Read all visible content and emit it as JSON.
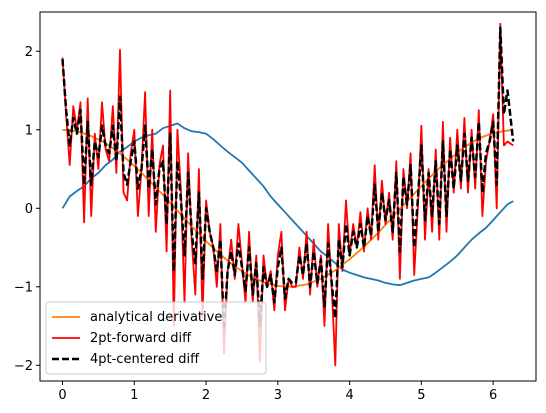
{
  "chart_data": {
    "type": "line",
    "title": "",
    "xlabel": "",
    "ylabel": "",
    "xlim": [
      -0.314,
      6.597
    ],
    "ylim": [
      -2.2,
      2.5
    ],
    "xticks": [
      0,
      1,
      2,
      3,
      4,
      5,
      6
    ],
    "yticks": [
      -2,
      -1,
      0,
      1,
      2
    ],
    "grid": false,
    "legend_position": "lower-left",
    "series": [
      {
        "name": "",
        "color": "#1f77b4",
        "style": "solid",
        "x": [
          0,
          0.1,
          0.2,
          0.3,
          0.4,
          0.5,
          0.6,
          0.7,
          0.8,
          0.9,
          1.0,
          1.1,
          1.2,
          1.3,
          1.4,
          1.5,
          1.6,
          1.7,
          1.8,
          1.9,
          2.0,
          2.1,
          2.2,
          2.3,
          2.4,
          2.5,
          2.6,
          2.7,
          2.8,
          2.9,
          3.0,
          3.1,
          3.2,
          3.3,
          3.4,
          3.5,
          3.6,
          3.7,
          3.8,
          3.9,
          4.0,
          4.1,
          4.2,
          4.3,
          4.4,
          4.5,
          4.6,
          4.7,
          4.8,
          4.9,
          5.0,
          5.1,
          5.2,
          5.3,
          5.4,
          5.5,
          5.6,
          5.7,
          5.8,
          5.9,
          6.0,
          6.1,
          6.2,
          6.28
        ],
        "values": [
          0.0,
          0.15,
          0.22,
          0.28,
          0.38,
          0.45,
          0.55,
          0.62,
          0.72,
          0.78,
          0.85,
          0.9,
          0.93,
          0.95,
          1.02,
          1.05,
          1.08,
          1.02,
          0.98,
          0.97,
          0.95,
          0.88,
          0.8,
          0.72,
          0.65,
          0.58,
          0.48,
          0.38,
          0.28,
          0.15,
          0.05,
          -0.05,
          -0.15,
          -0.25,
          -0.35,
          -0.45,
          -0.55,
          -0.62,
          -0.7,
          -0.78,
          -0.82,
          -0.85,
          -0.88,
          -0.9,
          -0.92,
          -0.95,
          -0.97,
          -0.98,
          -0.95,
          -0.92,
          -0.9,
          -0.88,
          -0.82,
          -0.75,
          -0.68,
          -0.6,
          -0.5,
          -0.4,
          -0.32,
          -0.25,
          -0.15,
          -0.05,
          0.05,
          0.09
        ]
      },
      {
        "name": "analytical derivative",
        "color": "#ff7f0e",
        "style": "solid",
        "x": [
          0,
          0.2,
          0.4,
          0.6,
          0.8,
          1.0,
          1.2,
          1.4,
          1.6,
          1.8,
          2.0,
          2.2,
          2.4,
          2.6,
          2.8,
          3.0,
          3.2,
          3.4,
          3.6,
          3.8,
          4.0,
          4.2,
          4.4,
          4.6,
          4.8,
          5.0,
          5.2,
          5.4,
          5.6,
          5.8,
          6.0,
          6.28
        ],
        "values": [
          1.0,
          0.98,
          0.92,
          0.83,
          0.7,
          0.54,
          0.36,
          0.17,
          -0.03,
          -0.23,
          -0.42,
          -0.59,
          -0.74,
          -0.86,
          -0.94,
          -0.99,
          -1.0,
          -0.97,
          -0.9,
          -0.79,
          -0.65,
          -0.49,
          -0.31,
          -0.11,
          0.09,
          0.28,
          0.47,
          0.63,
          0.78,
          0.89,
          0.96,
          1.0
        ]
      },
      {
        "name": "2pt-forward diff",
        "color": "#ff0000",
        "style": "solid",
        "x": [
          0,
          0.05,
          0.1,
          0.15,
          0.2,
          0.25,
          0.3,
          0.35,
          0.4,
          0.45,
          0.5,
          0.55,
          0.6,
          0.65,
          0.7,
          0.75,
          0.8,
          0.85,
          0.9,
          0.95,
          1.0,
          1.05,
          1.1,
          1.15,
          1.2,
          1.25,
          1.3,
          1.35,
          1.4,
          1.45,
          1.5,
          1.55,
          1.6,
          1.65,
          1.7,
          1.75,
          1.8,
          1.85,
          1.9,
          1.95,
          2.0,
          2.05,
          2.1,
          2.15,
          2.2,
          2.25,
          2.3,
          2.35,
          2.4,
          2.45,
          2.5,
          2.55,
          2.6,
          2.65,
          2.7,
          2.75,
          2.8,
          2.85,
          2.9,
          2.95,
          3.0,
          3.05,
          3.1,
          3.15,
          3.2,
          3.25,
          3.3,
          3.35,
          3.4,
          3.45,
          3.5,
          3.55,
          3.6,
          3.65,
          3.7,
          3.75,
          3.8,
          3.85,
          3.9,
          3.95,
          4.0,
          4.05,
          4.1,
          4.15,
          4.2,
          4.25,
          4.3,
          4.35,
          4.4,
          4.45,
          4.5,
          4.55,
          4.6,
          4.65,
          4.7,
          4.75,
          4.8,
          4.85,
          4.9,
          4.95,
          5.0,
          5.05,
          5.1,
          5.15,
          5.2,
          5.25,
          5.3,
          5.35,
          5.4,
          5.45,
          5.5,
          5.55,
          5.6,
          5.65,
          5.7,
          5.75,
          5.8,
          5.85,
          5.9,
          5.95,
          6.0,
          6.05,
          6.1,
          6.15,
          6.2,
          6.28
        ],
        "values": [
          1.92,
          1.2,
          0.55,
          1.3,
          1.0,
          1.35,
          -0.18,
          1.4,
          -0.1,
          0.95,
          0.5,
          1.35,
          0.75,
          0.6,
          1.3,
          0.45,
          2.02,
          0.2,
          0.1,
          0.7,
          1.0,
          -0.1,
          0.5,
          1.48,
          -0.1,
          1.0,
          -0.3,
          0.55,
          0.8,
          -0.55,
          1.5,
          -1.5,
          1.0,
          0.2,
          -1.2,
          0.7,
          -0.4,
          -1.1,
          0.5,
          -1.38,
          0.1,
          -0.3,
          -0.5,
          -1.0,
          -0.2,
          -1.85,
          -0.8,
          -0.4,
          -0.9,
          -0.2,
          -0.7,
          -1.2,
          -0.3,
          -1.2,
          -0.6,
          -1.95,
          -0.6,
          -1.0,
          -0.8,
          -1.3,
          -0.6,
          -0.3,
          -1.3,
          -0.9,
          -1.0,
          -1.0,
          -0.5,
          -0.9,
          -0.3,
          -1.1,
          -0.4,
          -1.0,
          -0.6,
          -1.5,
          -0.2,
          -1.0,
          -2.0,
          -0.2,
          -0.8,
          0.1,
          -0.6,
          -0.2,
          -0.5,
          -0.05,
          -0.55,
          0.0,
          -0.4,
          0.55,
          -0.4,
          0.35,
          -0.2,
          0.2,
          -0.4,
          0.6,
          -0.9,
          0.5,
          0.0,
          0.7,
          -0.85,
          0.0,
          1.05,
          -0.4,
          0.5,
          -0.3,
          0.75,
          -0.4,
          1.1,
          -0.3,
          0.9,
          0.2,
          1.0,
          0.25,
          1.15,
          0.2,
          1.0,
          0.25,
          1.25,
          -0.1,
          0.6,
          0.85,
          1.2,
          0.0,
          2.35,
          0.8,
          0.85,
          0.8
        ]
      },
      {
        "name": "4pt-centered diff",
        "color": "#000000",
        "style": "dashed",
        "x": [
          0,
          0.05,
          0.1,
          0.15,
          0.2,
          0.25,
          0.3,
          0.35,
          0.4,
          0.45,
          0.5,
          0.55,
          0.6,
          0.65,
          0.7,
          0.75,
          0.8,
          0.85,
          0.9,
          0.95,
          1.0,
          1.05,
          1.1,
          1.15,
          1.2,
          1.25,
          1.3,
          1.35,
          1.4,
          1.45,
          1.5,
          1.55,
          1.6,
          1.65,
          1.7,
          1.75,
          1.8,
          1.85,
          1.9,
          1.95,
          2.0,
          2.05,
          2.1,
          2.15,
          2.2,
          2.25,
          2.3,
          2.35,
          2.4,
          2.45,
          2.5,
          2.55,
          2.6,
          2.65,
          2.7,
          2.75,
          2.8,
          2.85,
          2.9,
          2.95,
          3.0,
          3.05,
          3.1,
          3.15,
          3.2,
          3.25,
          3.3,
          3.35,
          3.4,
          3.45,
          3.5,
          3.55,
          3.6,
          3.65,
          3.7,
          3.75,
          3.8,
          3.85,
          3.9,
          3.95,
          4.0,
          4.05,
          4.1,
          4.15,
          4.2,
          4.25,
          4.3,
          4.35,
          4.4,
          4.45,
          4.5,
          4.55,
          4.6,
          4.65,
          4.7,
          4.75,
          4.8,
          4.85,
          4.9,
          4.95,
          5.0,
          5.05,
          5.1,
          5.15,
          5.2,
          5.25,
          5.3,
          5.35,
          5.4,
          5.45,
          5.5,
          5.55,
          5.6,
          5.65,
          5.7,
          5.75,
          5.8,
          5.85,
          5.9,
          5.95,
          6.0,
          6.05,
          6.1,
          6.15,
          6.2,
          6.28
        ],
        "values": [
          1.9,
          1.25,
          0.8,
          1.15,
          0.95,
          1.25,
          0.3,
          1.1,
          0.3,
          0.85,
          0.65,
          1.05,
          0.8,
          0.7,
          1.05,
          0.6,
          1.42,
          0.45,
          0.3,
          0.6,
          0.85,
          0.25,
          0.5,
          1.05,
          0.25,
          0.75,
          0.05,
          0.5,
          0.6,
          -0.2,
          0.95,
          -0.8,
          0.6,
          0.1,
          -0.6,
          0.45,
          -0.3,
          -0.7,
          0.2,
          -0.9,
          0.0,
          -0.3,
          -0.5,
          -0.8,
          -0.4,
          -1.55,
          -0.8,
          -0.55,
          -0.85,
          -0.45,
          -0.75,
          -1.05,
          -0.5,
          -1.1,
          -0.7,
          -1.5,
          -0.75,
          -1.0,
          -0.85,
          -1.2,
          -0.75,
          -0.5,
          -1.15,
          -0.9,
          -0.95,
          -0.95,
          -0.6,
          -0.85,
          -0.45,
          -1.0,
          -0.55,
          -0.95,
          -0.65,
          -1.25,
          -0.45,
          -0.95,
          -1.4,
          -0.4,
          -0.75,
          -0.2,
          -0.6,
          -0.3,
          -0.5,
          -0.2,
          -0.5,
          -0.1,
          -0.35,
          0.3,
          -0.3,
          0.2,
          -0.15,
          0.1,
          -0.3,
          0.45,
          -0.55,
          0.4,
          0.05,
          0.55,
          -0.5,
          0.1,
          0.8,
          -0.15,
          0.45,
          -0.1,
          0.6,
          -0.2,
          0.85,
          -0.1,
          0.75,
          0.25,
          0.8,
          0.35,
          0.95,
          0.35,
          0.9,
          0.4,
          1.1,
          0.2,
          0.7,
          0.85,
          1.1,
          0.3,
          2.3,
          1.2,
          1.5,
          0.85
        ]
      }
    ]
  }
}
